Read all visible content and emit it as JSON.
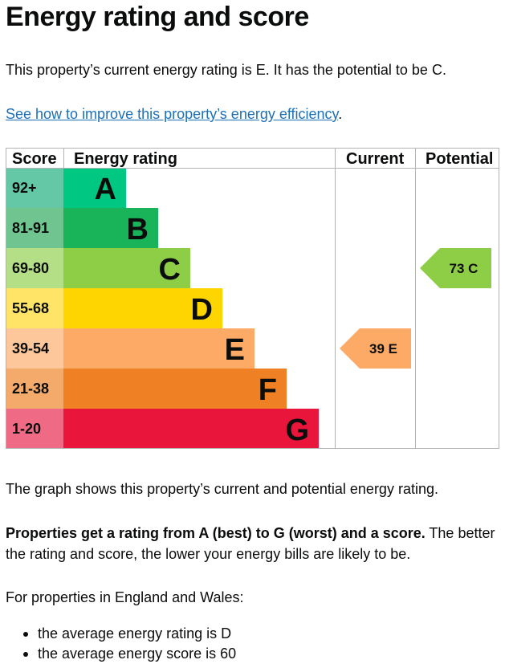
{
  "page": {
    "title": "Energy rating and score",
    "intro": "This property’s current energy rating is E. It has the potential to be C.",
    "improve_link": "See how to improve this property’s energy efficiency",
    "improve_link_suffix": ".",
    "graph_caption": "The graph shows this property’s current and potential energy rating.",
    "rating_info_bold": "Properties get a rating from A (best) to G (worst) and a score.",
    "rating_info_rest": " The better the rating and score, the lower your energy bills are likely to be.",
    "average_heading": "For properties in England and Wales:",
    "averages": [
      "the average energy rating is D",
      "the average energy score is 60"
    ]
  },
  "chart_data": {
    "type": "table",
    "columns": [
      "Score",
      "Energy rating",
      "Current",
      "Potential"
    ],
    "bands": [
      {
        "score": "92+",
        "rating": "A",
        "color": "#00c781",
        "score_bg": "#64c7a6"
      },
      {
        "score": "81-91",
        "rating": "B",
        "color": "#19b459",
        "score_bg": "#6fc48f"
      },
      {
        "score": "69-80",
        "rating": "C",
        "color": "#8dce46",
        "score_bg": "#b4df86"
      },
      {
        "score": "55-68",
        "rating": "D",
        "color": "#ffd500",
        "score_bg": "#ffe467"
      },
      {
        "score": "39-54",
        "rating": "E",
        "color": "#fcaa65",
        "score_bg": "#fdc79b"
      },
      {
        "score": "21-38",
        "rating": "F",
        "color": "#ef8023",
        "score_bg": "#f4aa6a"
      },
      {
        "score": "1-20",
        "rating": "G",
        "color": "#e9153b",
        "score_bg": "#ef6a84"
      }
    ],
    "current": {
      "score": 39,
      "rating": "E",
      "label": "39  E",
      "color": "#fcaa65"
    },
    "potential": {
      "score": 73,
      "rating": "C",
      "label": "73  C",
      "color": "#8dce46"
    }
  }
}
